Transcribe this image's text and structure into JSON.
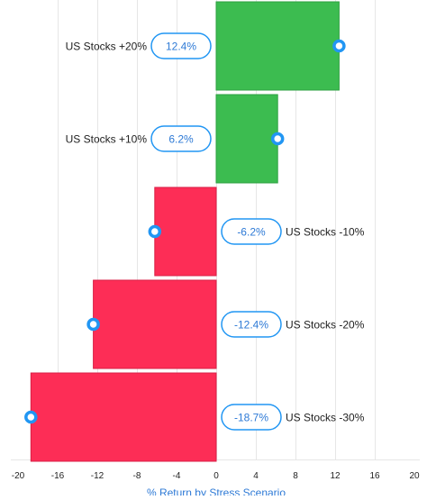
{
  "chart_data": {
    "type": "bar",
    "orientation": "horizontal",
    "categories": [
      "US Stocks +20%",
      "US Stocks +10%",
      "US Stocks -10%",
      "US Stocks -20%",
      "US Stocks -30%"
    ],
    "values": [
      12.4,
      6.2,
      -6.2,
      -12.4,
      -18.7
    ],
    "value_labels": [
      "12.4%",
      "6.2%",
      "-6.2%",
      "-12.4%",
      "-18.7%"
    ],
    "xlabel": "% Return by Stress Scenario",
    "xlim": [
      -20,
      20
    ],
    "xticks": [
      -20,
      -16,
      -12,
      -8,
      -4,
      0,
      4,
      8,
      12,
      16,
      20
    ],
    "grid": "vertical",
    "colors": {
      "positive": "#3cbc50",
      "negative": "#fd2d56",
      "marker": "#2196f3",
      "label_text": "#2e7ad6",
      "grid": "#e6e6e6",
      "text": "#222222"
    }
  }
}
